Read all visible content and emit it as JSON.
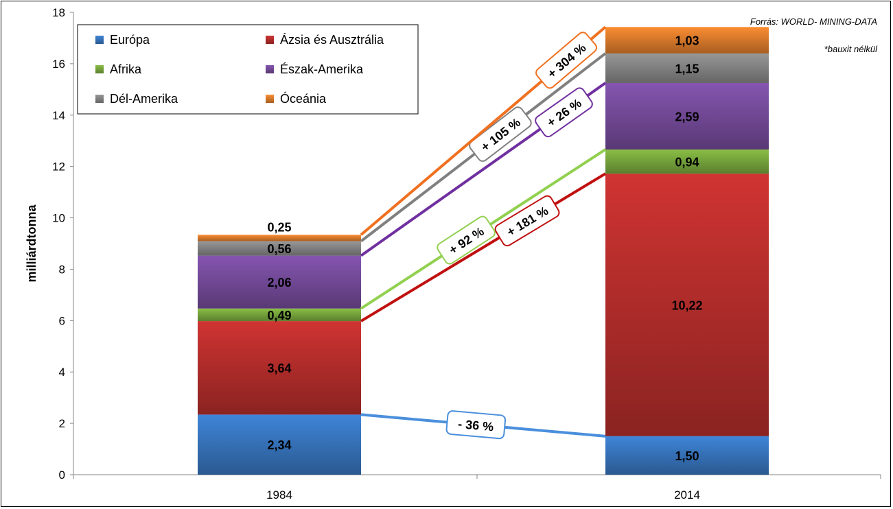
{
  "chart_data": {
    "type": "bar",
    "stacked": true,
    "categories": [
      "1984",
      "2014"
    ],
    "ylabel": "milliárdtonna",
    "ylim": [
      0,
      18
    ],
    "yticks": [
      0,
      2,
      4,
      6,
      8,
      10,
      12,
      14,
      16,
      18
    ],
    "series": [
      {
        "name": "Európa",
        "color": "#3a7bc8",
        "values": [
          2.34,
          1.5
        ],
        "labels": [
          "2,34",
          "1,50"
        ],
        "change": "- 36 %"
      },
      {
        "name": "Ázsia és Ausztrália",
        "color": "#c0302e",
        "values": [
          3.64,
          10.22
        ],
        "labels": [
          "3,64",
          "10,22"
        ],
        "change": "+ 181 %"
      },
      {
        "name": "Afrika",
        "color": "#7fb040",
        "values": [
          0.49,
          0.94
        ],
        "labels": [
          "0,49",
          "0,94"
        ],
        "change": "+ 92 %"
      },
      {
        "name": "Észak-Amerika",
        "color": "#7b4fa3",
        "values": [
          2.06,
          2.59
        ],
        "labels": [
          "2,06",
          "2,59"
        ],
        "change": "+ 26 %"
      },
      {
        "name": "Dél-Amerika",
        "color": "#8c8c8c",
        "values": [
          0.56,
          1.15
        ],
        "labels": [
          "0,56",
          "1,15"
        ],
        "change": "+ 105 %"
      },
      {
        "name": "Óceánia",
        "color": "#e8832e",
        "values": [
          0.25,
          1.03
        ],
        "labels": [
          "0,25",
          "1,03"
        ],
        "change": "+ 304 %"
      }
    ],
    "legend_position": "top-left",
    "grid": false
  },
  "annotations": {
    "source": "Forrás: WORLD- MINING-DATA",
    "note": "*bauxit nélkül"
  },
  "line_colors": {
    "Európa": "#4a8fdc",
    "Ázsia és Ausztrália": "#c01010",
    "Afrika": "#92d050",
    "Észak-Amerika": "#7030a0",
    "Dél-Amerika": "#808080",
    "Óceánia": "#f07020"
  }
}
